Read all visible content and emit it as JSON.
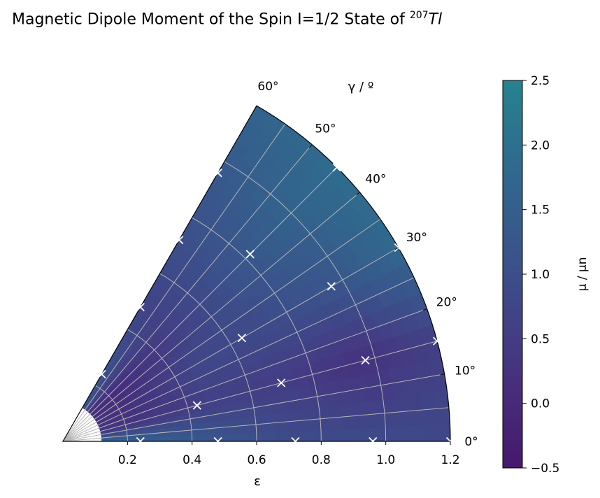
{
  "title": {
    "prefix": "Magnetic Dipole Moment of the Spin I=1/2 State of ",
    "isotope_mass": "207",
    "isotope_symbol": "Tl"
  },
  "chart_data": {
    "type": "heatmap",
    "projection": "polar-sector",
    "xlabel": "ε",
    "ylabel": "γ / º",
    "radial_range": [
      0,
      1.2
    ],
    "radial_ticks": [
      "0.2",
      "0.4",
      "0.6",
      "0.8",
      "1.0",
      "1.2"
    ],
    "angular_range_deg": [
      0,
      60
    ],
    "angular_ticks": [
      "0°",
      "10°",
      "20°",
      "30°",
      "40°",
      "50°",
      "60°"
    ],
    "grid": true,
    "colormap": "viridis (lower range)",
    "colorbar": {
      "label": "μ / μn",
      "range": [
        -0.5,
        2.5
      ],
      "ticks": [
        "2.5",
        "2.0",
        "1.5",
        "1.0",
        "0.5",
        "0.0",
        "−0.5"
      ]
    },
    "grid_eps": [
      0.24,
      0.48,
      0.72,
      0.96,
      1.2
    ],
    "grid_gamma_deg": [
      0,
      15,
      30,
      45,
      60
    ],
    "values": [
      [
        1.6,
        1.2,
        0.9,
        0.9,
        0.8
      ],
      [
        0.3,
        0.6,
        0.5,
        0.2,
        0.6
      ],
      [
        0.2,
        0.8,
        0.9,
        1.2,
        1.8
      ],
      [
        0.1,
        0.6,
        1.1,
        1.6,
        1.9
      ],
      [
        1.2,
        0.7,
        1.0,
        1.3,
        1.6
      ]
    ],
    "points": [
      {
        "eps": 0.24,
        "gamma": 0
      },
      {
        "eps": 0.48,
        "gamma": 0
      },
      {
        "eps": 0.72,
        "gamma": 0
      },
      {
        "eps": 0.96,
        "gamma": 0
      },
      {
        "eps": 1.2,
        "gamma": 0
      },
      {
        "eps": 0.43,
        "gamma": 15
      },
      {
        "eps": 0.7,
        "gamma": 15
      },
      {
        "eps": 0.97,
        "gamma": 15
      },
      {
        "eps": 1.2,
        "gamma": 15
      },
      {
        "eps": 0.64,
        "gamma": 30
      },
      {
        "eps": 0.96,
        "gamma": 30
      },
      {
        "eps": 1.2,
        "gamma": 30
      },
      {
        "eps": 0.82,
        "gamma": 45
      },
      {
        "eps": 1.2,
        "gamma": 45
      },
      {
        "eps": 0.24,
        "gamma": 60
      },
      {
        "eps": 0.48,
        "gamma": 60
      },
      {
        "eps": 0.72,
        "gamma": 60
      },
      {
        "eps": 0.96,
        "gamma": 60
      }
    ]
  }
}
